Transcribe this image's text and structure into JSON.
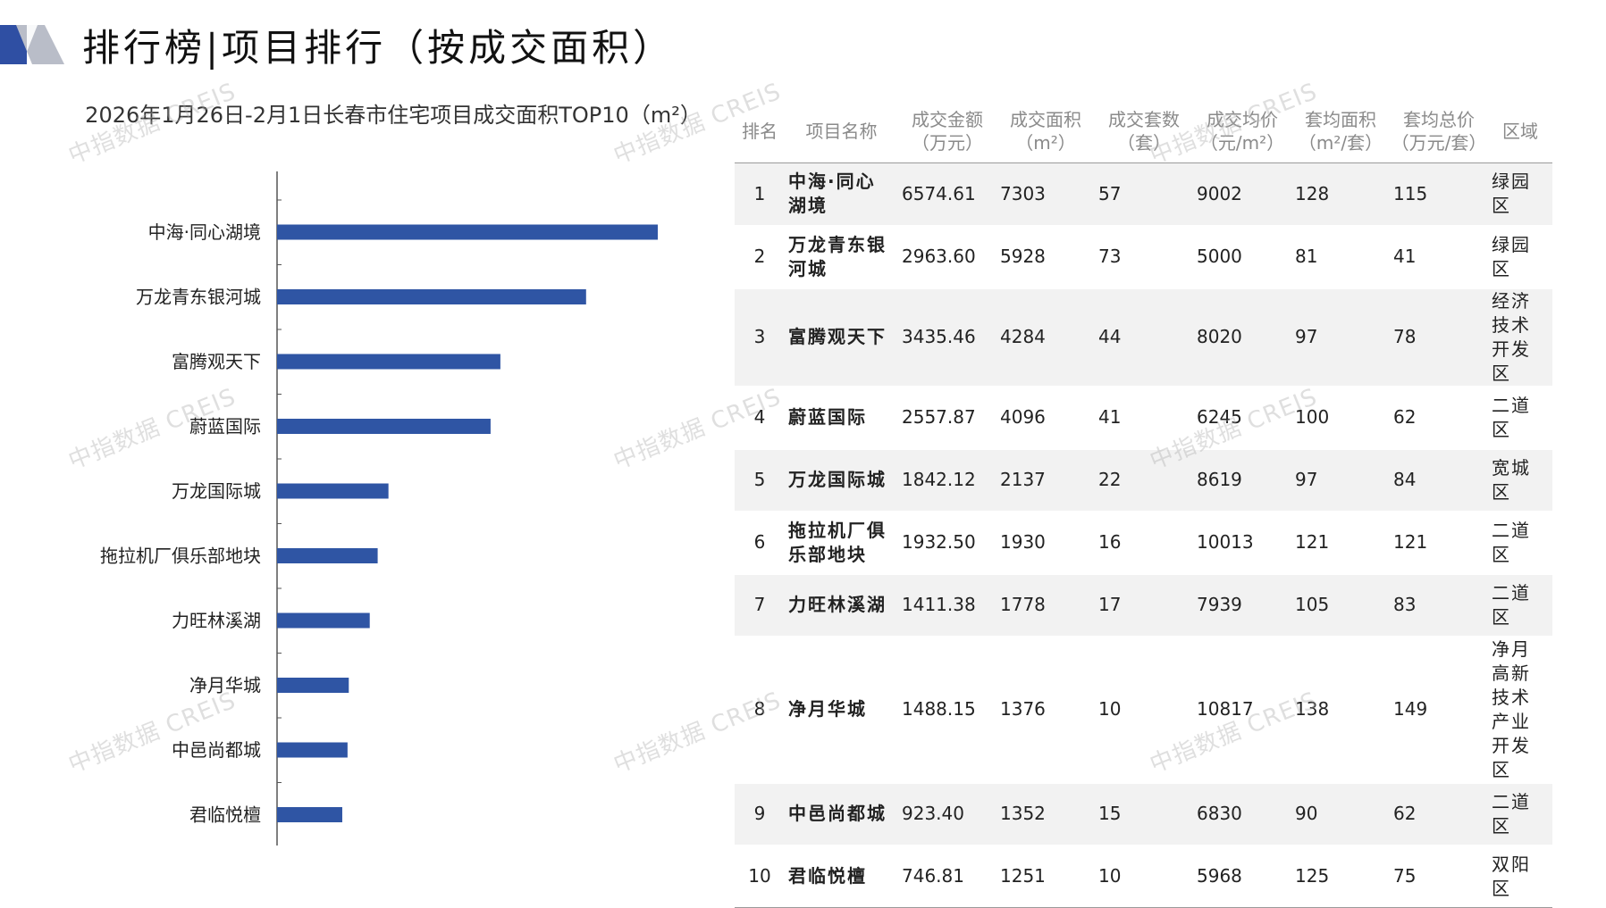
{
  "page": {
    "title": "排行榜|项目排行（按成交面积）",
    "watermark": "中指数据 CREIS",
    "colors": {
      "bar": "#2f55a4",
      "logo_dark": "#2f4fa3",
      "logo_light": "#b9bdc8"
    }
  },
  "chart_data": {
    "type": "bar",
    "orientation": "horizontal",
    "title": "2026年1月26日-2月1日长春市住宅项目成交面积TOP10（m²）",
    "categories": [
      "中海·同心湖境",
      "万龙青东银河城",
      "富腾观天下",
      "蔚蓝国际",
      "万龙国际城",
      "拖拉机厂俱乐部地块",
      "力旺林溪湖",
      "净月华城",
      "中邑尚都城",
      "君临悦檀"
    ],
    "values": [
      7303,
      5928,
      4284,
      4096,
      2137,
      1930,
      1778,
      1376,
      1352,
      1251
    ],
    "xlim": [
      0,
      8000
    ],
    "grid": false
  },
  "table": {
    "headers": [
      {
        "line1": "排名",
        "line2": ""
      },
      {
        "line1": "项目名称",
        "line2": ""
      },
      {
        "line1": "成交金额",
        "line2": "（万元）"
      },
      {
        "line1": "成交面积",
        "line2": "（m²）"
      },
      {
        "line1": "成交套数",
        "line2": "（套）"
      },
      {
        "line1": "成交均价",
        "line2": "（元/m²）"
      },
      {
        "line1": "套均面积",
        "line2": "（m²/套）"
      },
      {
        "line1": "套均总价",
        "line2": "（万元/套）"
      },
      {
        "line1": "区域",
        "line2": ""
      }
    ],
    "rows": [
      {
        "rank": "1",
        "name": "中海·同心湖境",
        "amount": "6574.61",
        "area": "7303",
        "units": "57",
        "avg_price": "9002",
        "avg_area": "128",
        "avg_total": "115",
        "district": "绿园区"
      },
      {
        "rank": "2",
        "name": "万龙青东银河城",
        "amount": "2963.60",
        "area": "5928",
        "units": "73",
        "avg_price": "5000",
        "avg_area": "81",
        "avg_total": "41",
        "district": "绿园区"
      },
      {
        "rank": "3",
        "name": "富腾观天下",
        "amount": "3435.46",
        "area": "4284",
        "units": "44",
        "avg_price": "8020",
        "avg_area": "97",
        "avg_total": "78",
        "district": "经济技术开发区"
      },
      {
        "rank": "4",
        "name": "蔚蓝国际",
        "amount": "2557.87",
        "area": "4096",
        "units": "41",
        "avg_price": "6245",
        "avg_area": "100",
        "avg_total": "62",
        "district": "二道区"
      },
      {
        "rank": "5",
        "name": "万龙国际城",
        "amount": "1842.12",
        "area": "2137",
        "units": "22",
        "avg_price": "8619",
        "avg_area": "97",
        "avg_total": "84",
        "district": "宽城区"
      },
      {
        "rank": "6",
        "name": "拖拉机厂俱乐部地块",
        "amount": "1932.50",
        "area": "1930",
        "units": "16",
        "avg_price": "10013",
        "avg_area": "121",
        "avg_total": "121",
        "district": "二道区"
      },
      {
        "rank": "7",
        "name": "力旺林溪湖",
        "amount": "1411.38",
        "area": "1778",
        "units": "17",
        "avg_price": "7939",
        "avg_area": "105",
        "avg_total": "83",
        "district": "二道区"
      },
      {
        "rank": "8",
        "name": "净月华城",
        "amount": "1488.15",
        "area": "1376",
        "units": "10",
        "avg_price": "10817",
        "avg_area": "138",
        "avg_total": "149",
        "district": "净月高新技术产业开发区"
      },
      {
        "rank": "9",
        "name": "中邑尚都城",
        "amount": "923.40",
        "area": "1352",
        "units": "15",
        "avg_price": "6830",
        "avg_area": "90",
        "avg_total": "62",
        "district": "二道区"
      },
      {
        "rank": "10",
        "name": "君临悦檀",
        "amount": "746.81",
        "area": "1251",
        "units": "10",
        "avg_price": "5968",
        "avg_area": "125",
        "avg_total": "75",
        "district": "双阳区"
      }
    ]
  }
}
